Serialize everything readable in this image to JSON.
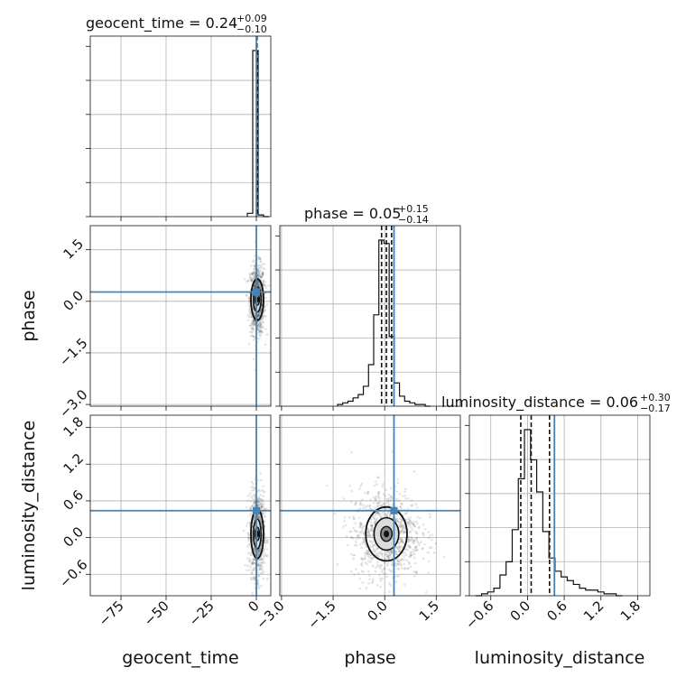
{
  "chart_data": {
    "type": "corner",
    "parameters": [
      "geocent_time",
      "phase",
      "luminosity_distance"
    ],
    "axis_labels": {
      "geocent_time": "geocent_time",
      "phase": "phase",
      "luminosity_distance": "luminosity_distance"
    },
    "ranges": {
      "geocent_time": [
        -92,
        8
      ],
      "phase": [
        -3.05,
        2.2
      ],
      "luminosity_distance": [
        -0.95,
        2.0
      ]
    },
    "ticks": {
      "geocent_time": [
        -75,
        -50,
        -25,
        0
      ],
      "phase": [
        -3.0,
        -1.5,
        0.0,
        1.5
      ],
      "luminosity_distance": [
        -0.6,
        0.0,
        0.6,
        1.2,
        1.8
      ]
    },
    "tick_labels": {
      "geocent_time": [
        "−75",
        "−50",
        "−25",
        "0"
      ],
      "phase": [
        "−3.0",
        "−1.5",
        "0.0",
        "1.5"
      ],
      "luminosity_distance": [
        "−0.6",
        "0.0",
        "0.6",
        "1.2",
        "1.8"
      ]
    },
    "truths": {
      "geocent_time": 0.0,
      "phase": 0.27,
      "luminosity_distance": 0.44
    },
    "titles": [
      {
        "param": "geocent_time",
        "main": "geocent_time = 0.24",
        "plus": "+0.09",
        "minus": "−0.10"
      },
      {
        "param": "phase",
        "main": "phase = 0.05",
        "plus": "+0.15",
        "minus": "−0.14"
      },
      {
        "param": "luminosity_distance",
        "main": "luminosity_distance = 0.06",
        "plus": "+0.30",
        "minus": "−0.17"
      }
    ],
    "quantile_lines": {
      "geocent_time": [
        0.14,
        0.24,
        0.33
      ],
      "phase": [
        -0.09,
        0.05,
        0.2
      ],
      "luminosity_distance": [
        -0.11,
        0.06,
        0.36
      ]
    },
    "histograms": {
      "geocent_time": {
        "bin_edges": [
          -5,
          -2,
          1,
          4,
          7
        ],
        "counts": [
          2,
          100,
          1,
          0
        ]
      },
      "phase": {
        "bin_edges": [
          -1.37,
          -1.22,
          -1.07,
          -0.92,
          -0.77,
          -0.62,
          -0.47,
          -0.32,
          -0.17,
          -0.02,
          0.13,
          0.28,
          0.43,
          0.58,
          0.73,
          0.88,
          1.03,
          1.18,
          1.33
        ],
        "counts": [
          1,
          2,
          3,
          5,
          7,
          12,
          25,
          55,
          100,
          98,
          42,
          14,
          6,
          3,
          2,
          1,
          1,
          0
        ]
      },
      "luminosity_distance": {
        "bin_edges": [
          -0.85,
          -0.75,
          -0.65,
          -0.55,
          -0.45,
          -0.35,
          -0.25,
          -0.15,
          -0.05,
          0.05,
          0.15,
          0.25,
          0.35,
          0.45,
          0.55,
          0.65,
          0.75,
          0.85,
          0.95,
          1.05,
          1.15,
          1.25,
          1.35,
          1.45,
          1.55
        ],
        "counts": [
          0,
          1,
          2,
          4,
          11,
          18,
          35,
          62,
          88,
          72,
          55,
          34,
          20,
          13,
          10,
          8,
          6,
          4,
          3,
          3,
          2,
          1,
          1,
          0
        ]
      }
    },
    "contours_2d": {
      "phase_vs_geocent_time": {
        "center": [
          0.5,
          0.05
        ],
        "sigma": [
          0.8,
          0.3
        ]
      },
      "luminosity_distance_vs_geocent_time": {
        "center": [
          0.5,
          0.06
        ],
        "sigma": [
          0.8,
          0.2
        ]
      },
      "luminosity_distance_vs_phase": {
        "center": [
          0.05,
          0.06
        ],
        "sigma": [
          0.3,
          0.22
        ]
      }
    },
    "grid": true
  },
  "colors": {
    "truth": "#4682b4",
    "histogram": "#111111",
    "scatter": "#555555"
  }
}
